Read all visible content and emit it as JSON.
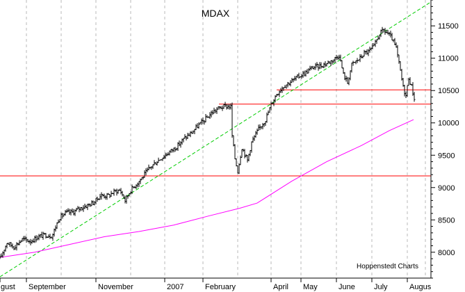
{
  "chart_data": {
    "type": "bar",
    "subtype": "ohlc-price-chart",
    "title": "MDAX",
    "credit": "Hoppenstedt Charts",
    "y_axis_position": "right",
    "ylim": [
      7600,
      11900
    ],
    "y_ticks": [
      8000,
      8500,
      9000,
      9500,
      10000,
      10500,
      11000,
      11500
    ],
    "y_tick_labels": [
      "8000",
      "8500",
      "9000",
      "9500",
      "10000",
      "10500",
      "11000",
      "11500"
    ],
    "month_labels": [
      "gust",
      "September",
      "November",
      "2007",
      "February",
      "April",
      "May",
      "June",
      "July",
      "Augus"
    ],
    "month_label_days": [
      0,
      38,
      138,
      237,
      292,
      390,
      433,
      484,
      535,
      586
    ],
    "xlim": [
      0,
      620
    ],
    "grid": "vertical dashed",
    "price_path": [
      [
        0,
        7900
      ],
      [
        10,
        8150
      ],
      [
        20,
        8080
      ],
      [
        32,
        8200
      ],
      [
        44,
        8170
      ],
      [
        55,
        8240
      ],
      [
        65,
        8270
      ],
      [
        75,
        8250
      ],
      [
        85,
        8530
      ],
      [
        95,
        8610
      ],
      [
        105,
        8620
      ],
      [
        115,
        8680
      ],
      [
        125,
        8720
      ],
      [
        135,
        8770
      ],
      [
        145,
        8880
      ],
      [
        155,
        8870
      ],
      [
        165,
        8940
      ],
      [
        173,
        8960
      ],
      [
        180,
        8800
      ],
      [
        188,
        8960
      ],
      [
        195,
        9040
      ],
      [
        205,
        9160
      ],
      [
        215,
        9300
      ],
      [
        225,
        9400
      ],
      [
        235,
        9480
      ],
      [
        245,
        9560
      ],
      [
        255,
        9640
      ],
      [
        265,
        9760
      ],
      [
        275,
        9840
      ],
      [
        285,
        9960
      ],
      [
        295,
        10050
      ],
      [
        305,
        10160
      ],
      [
        315,
        10230
      ],
      [
        325,
        10260
      ],
      [
        332,
        10250
      ],
      [
        334,
        9800
      ],
      [
        338,
        9450
      ],
      [
        342,
        9250
      ],
      [
        348,
        9620
      ],
      [
        356,
        9420
      ],
      [
        362,
        9700
      ],
      [
        372,
        9900
      ],
      [
        382,
        10050
      ],
      [
        390,
        10280
      ],
      [
        398,
        10450
      ],
      [
        408,
        10570
      ],
      [
        420,
        10650
      ],
      [
        430,
        10720
      ],
      [
        440,
        10780
      ],
      [
        450,
        10860
      ],
      [
        460,
        10880
      ],
      [
        470,
        10920
      ],
      [
        480,
        10980
      ],
      [
        488,
        11050
      ],
      [
        494,
        10750
      ],
      [
        500,
        10620
      ],
      [
        506,
        10900
      ],
      [
        512,
        10950
      ],
      [
        518,
        11000
      ],
      [
        524,
        11080
      ],
      [
        530,
        11100
      ],
      [
        538,
        11180
      ],
      [
        546,
        11380
      ],
      [
        552,
        11430
      ],
      [
        558,
        11380
      ],
      [
        564,
        11300
      ],
      [
        570,
        11150
      ],
      [
        576,
        10800
      ],
      [
        580,
        10550
      ],
      [
        584,
        10420
      ],
      [
        588,
        10700
      ],
      [
        592,
        10560
      ],
      [
        596,
        10380
      ]
    ],
    "moving_average": {
      "color": "#ff00ff",
      "points": [
        [
          0,
          7920
        ],
        [
          50,
          8000
        ],
        [
          100,
          8120
        ],
        [
          150,
          8240
        ],
        [
          200,
          8320
        ],
        [
          250,
          8420
        ],
        [
          300,
          8560
        ],
        [
          345,
          8680
        ],
        [
          370,
          8760
        ],
        [
          420,
          9100
        ],
        [
          470,
          9400
        ],
        [
          520,
          9650
        ],
        [
          560,
          9880
        ],
        [
          595,
          10050
        ]
      ]
    },
    "trendline": {
      "color": "#00cc00",
      "style": "dashed",
      "points": [
        [
          0,
          7620
        ],
        [
          620,
          11870
        ]
      ]
    },
    "horizontal_lines": [
      {
        "value": 9180,
        "color": "#ff0000",
        "from": 0,
        "to": 620
      },
      {
        "value": 10290,
        "color": "#ff0000",
        "from": 315,
        "to": 620
      },
      {
        "value": 10510,
        "color": "#ff0000",
        "from": 398,
        "to": 620
      }
    ]
  }
}
